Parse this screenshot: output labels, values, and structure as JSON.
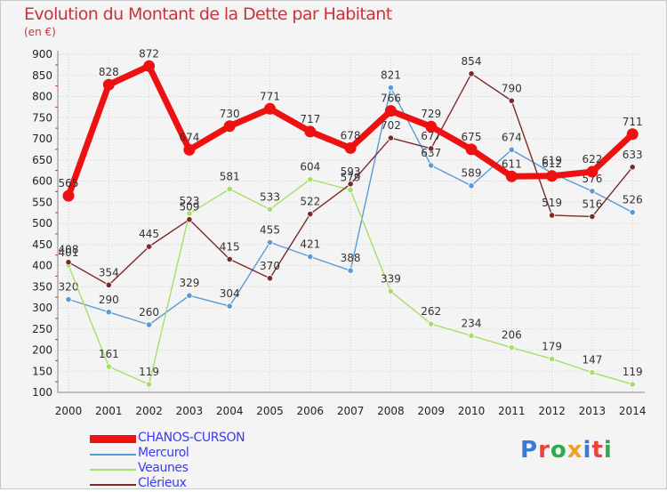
{
  "header": {
    "title": "Evolution du Montant de la Dette par Habitant",
    "unit": "(en €)"
  },
  "brand": {
    "logo_text": "Proxiti",
    "letter_colors": [
      "#3a7bd5",
      "#e8443a",
      "#2fa84f",
      "#f0a020",
      "#3a7bd5",
      "#e8443a",
      "#2fa84f"
    ]
  },
  "colors": {
    "title": "#c9333b",
    "legend_text": "#3a3af0",
    "axis_text": "#222222",
    "grid": "#d2d2d2"
  },
  "chart_data": {
    "type": "line",
    "x": [
      "2000",
      "2001",
      "2002",
      "2003",
      "2004",
      "2005",
      "2006",
      "2007",
      "2008",
      "2009",
      "2010",
      "2011",
      "2012",
      "2013",
      "2014"
    ],
    "ylim": [
      100,
      900
    ],
    "yticks": [
      100,
      150,
      200,
      250,
      300,
      350,
      400,
      450,
      500,
      550,
      600,
      650,
      700,
      750,
      800,
      850,
      900
    ],
    "grid": true,
    "legend_position": "bottom-left",
    "series": [
      {
        "name": "CHANOS-CURSON",
        "color": "#ee1111",
        "emphasis": true,
        "values": [
          565,
          828,
          872,
          674,
          730,
          771,
          717,
          678,
          766,
          729,
          675,
          611,
          612,
          622,
          711
        ]
      },
      {
        "name": "Mercurol",
        "color": "#5b9bd5",
        "values": [
          320,
          290,
          260,
          329,
          304,
          455,
          421,
          388,
          821,
          637,
          589,
          674,
          619,
          576,
          526
        ]
      },
      {
        "name": "Veaunes",
        "color": "#a6de6a",
        "values": [
          401,
          161,
          119,
          523,
          581,
          533,
          604,
          579,
          339,
          262,
          234,
          206,
          179,
          147,
          119
        ]
      },
      {
        "name": "Clérieux",
        "color": "#7a2a2a",
        "values": [
          408,
          354,
          445,
          509,
          415,
          370,
          522,
          593,
          702,
          677,
          854,
          790,
          519,
          516,
          633
        ]
      }
    ]
  }
}
